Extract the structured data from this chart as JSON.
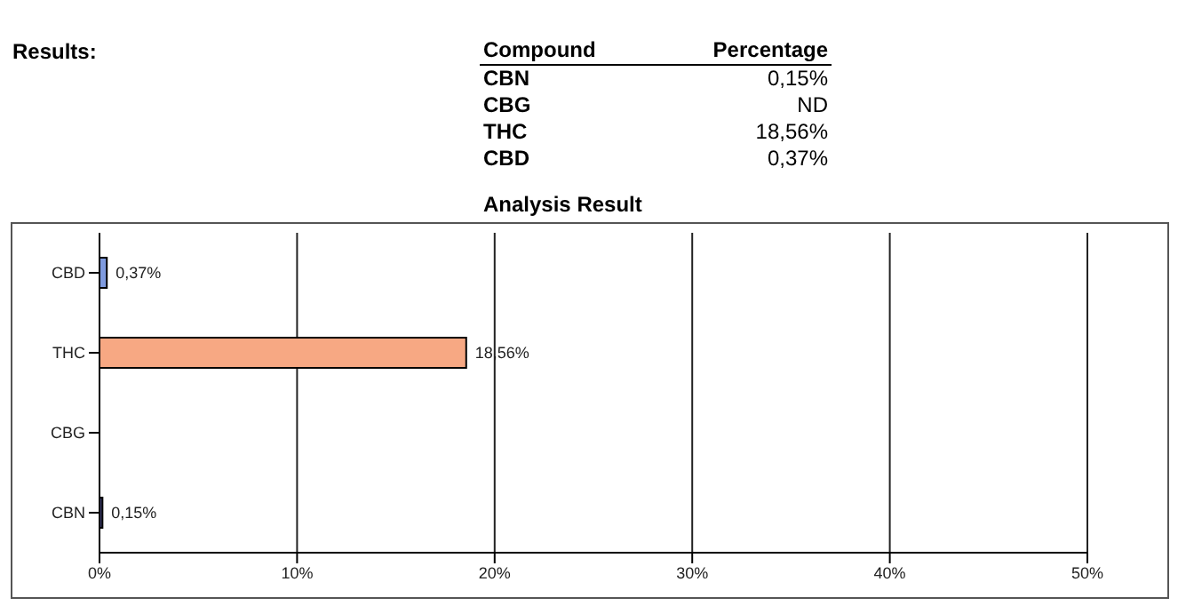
{
  "chart_data": {
    "type": "bar",
    "orientation": "horizontal",
    "title": "Analysis Result",
    "categories": [
      "CBD",
      "THC",
      "CBG",
      "CBN"
    ],
    "values": [
      0.37,
      18.56,
      null,
      0.15
    ],
    "colors": [
      "#7f9be0",
      "#f7a883",
      "#8a8ab0",
      "#3a3a6a"
    ],
    "value_labels": [
      "0,37%",
      "18,56%",
      null,
      "0,15%"
    ],
    "xlim": [
      0,
      50
    ],
    "xticks": [
      {
        "value": 0,
        "label": "0%"
      },
      {
        "value": 10,
        "label": "10%"
      },
      {
        "value": 20,
        "label": "20%"
      },
      {
        "value": 30,
        "label": "30%"
      },
      {
        "value": 40,
        "label": "40%"
      },
      {
        "value": 50,
        "label": "50%"
      }
    ],
    "grid": "x",
    "legend": false,
    "annotations": [
      "Results:",
      "Compound",
      "Percentage",
      "CBN",
      "0,15%",
      "CBG",
      "ND",
      "THC",
      "18,56%",
      "CBD",
      "0,37%"
    ]
  }
}
